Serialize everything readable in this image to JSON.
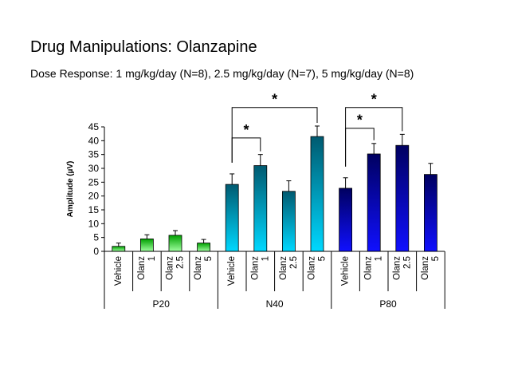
{
  "title": "Drug Manipulations: Olanzapine",
  "subtitle": "Dose Response: 1 mg/kg/day (N=8), 2.5 mg/kg/day (N=7), 5 mg/kg/day (N=8)",
  "chart_data": {
    "type": "bar",
    "ylabel": "Amplitude (µV)",
    "xlabel": "",
    "ylim": [
      0,
      45
    ],
    "yticks": [
      0,
      5,
      10,
      15,
      20,
      25,
      30,
      35,
      40,
      45
    ],
    "grid": false,
    "groups": [
      {
        "name": "P20",
        "color_top": "#00a000",
        "color_bottom": "#a0ffa0",
        "bars": [
          {
            "label": [
              "Vehicle"
            ],
            "value": 1.8,
            "error": 1.2
          },
          {
            "label": [
              "Olanz",
              "1"
            ],
            "value": 4.5,
            "error": 1.5
          },
          {
            "label": [
              "Olanz",
              "2.5"
            ],
            "value": 5.8,
            "error": 1.7
          },
          {
            "label": [
              "Olanz",
              "5"
            ],
            "value": 3.0,
            "error": 1.3
          }
        ]
      },
      {
        "name": "N40",
        "color_top": "#005a70",
        "color_bottom": "#00d8ff",
        "bars": [
          {
            "label": [
              "Vehicle"
            ],
            "value": 24.2,
            "error": 3.8
          },
          {
            "label": [
              "Olanz",
              "1"
            ],
            "value": 31.0,
            "error": 4.0
          },
          {
            "label": [
              "Olanz",
              "2.5"
            ],
            "value": 21.7,
            "error": 3.8
          },
          {
            "label": [
              "Olanz",
              "5"
            ],
            "value": 41.5,
            "error": 3.8
          }
        ]
      },
      {
        "name": "P80",
        "color_top": "#000060",
        "color_bottom": "#1010ff",
        "bars": [
          {
            "label": [
              "Vehicle"
            ],
            "value": 22.8,
            "error": 3.8
          },
          {
            "label": [
              "Olanz",
              "1"
            ],
            "value": 35.2,
            "error": 3.8
          },
          {
            "label": [
              "Olanz",
              "2.5"
            ],
            "value": 38.3,
            "error": 4.0
          },
          {
            "label": [
              "Olanz",
              "5"
            ],
            "value": 27.8,
            "error": 4.0
          }
        ]
      }
    ],
    "annotations": [
      {
        "text": "*",
        "from": [
          1,
          0
        ],
        "to": [
          1,
          1
        ],
        "level": 41
      },
      {
        "text": "*",
        "from": [
          1,
          0
        ],
        "to": [
          1,
          3
        ],
        "level": 52
      },
      {
        "text": "*",
        "from": [
          2,
          0
        ],
        "to": [
          2,
          1
        ],
        "level": 44.5
      },
      {
        "text": "*",
        "from": [
          2,
          0
        ],
        "to": [
          2,
          2
        ],
        "level": 52
      }
    ]
  }
}
